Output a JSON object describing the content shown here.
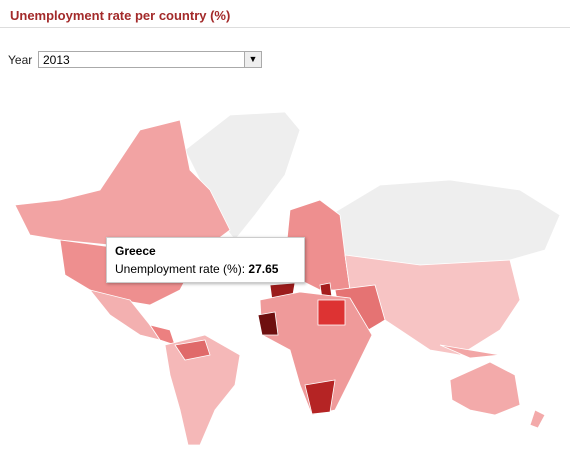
{
  "header": {
    "title": "Unemployment rate per country (%)"
  },
  "controls": {
    "year_label": "Year",
    "year_value": "2013"
  },
  "tooltip": {
    "country": "Greece",
    "metric": "Unemployment rate (%):",
    "value": 27.65
  }
}
